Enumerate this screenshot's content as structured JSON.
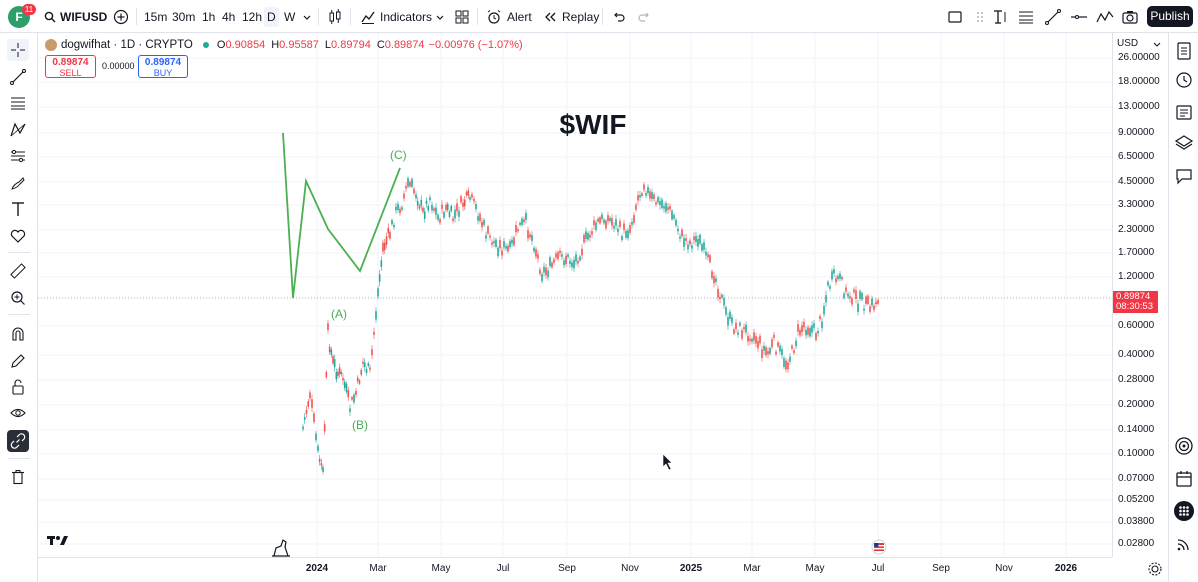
{
  "header": {
    "avatar_letter": "F",
    "notification_count": "11",
    "symbol": "WIFUSD",
    "timeframes": [
      "15m",
      "30m",
      "1h",
      "4h",
      "12h",
      "D",
      "W"
    ],
    "active_timeframe": "D",
    "indicators_label": "Indicators",
    "alert_label": "Alert",
    "replay_label": "Replay",
    "publish_label": "Publish"
  },
  "legend": {
    "name": "dogwifhat · 1D · CRYPTO",
    "open_label": "O",
    "open": "0.90854",
    "high_label": "H",
    "high": "0.95587",
    "low_label": "L",
    "low": "0.89794",
    "close_label": "C",
    "close": "0.89874",
    "change": "−0.00976 (−1.07%)"
  },
  "trade": {
    "sell_price": "0.89874",
    "sell_label": "SELL",
    "spread": "0.00000",
    "buy_price": "0.89874",
    "buy_label": "BUY"
  },
  "chart": {
    "title": "$WIF",
    "wave_labels": {
      "a": "(A)",
      "b": "(B)",
      "c": "(C)"
    },
    "wave_color": "#4caf50",
    "up_color": "#26a69a",
    "down_color": "#ef5350",
    "current_price": "0.89874",
    "countdown": "08:30:53",
    "currency": "USD"
  },
  "price_axis": [
    "26.00000",
    "18.00000",
    "13.00000",
    "9.00000",
    "6.50000",
    "4.50000",
    "3.30000",
    "2.30000",
    "1.70000",
    "1.20000",
    "0.60000",
    "0.40000",
    "0.28000",
    "0.20000",
    "0.14000",
    "0.10000",
    "0.07000",
    "0.05200",
    "0.03800",
    "0.02800"
  ],
  "time_axis": [
    {
      "label": "2024",
      "bold": true
    },
    {
      "label": "Mar",
      "bold": false
    },
    {
      "label": "May",
      "bold": false
    },
    {
      "label": "Jul",
      "bold": false
    },
    {
      "label": "Sep",
      "bold": false
    },
    {
      "label": "Nov",
      "bold": false
    },
    {
      "label": "2025",
      "bold": true
    },
    {
      "label": "Mar",
      "bold": false
    },
    {
      "label": "May",
      "bold": false
    },
    {
      "label": "Jul",
      "bold": false
    },
    {
      "label": "Sep",
      "bold": false
    },
    {
      "label": "Nov",
      "bold": false
    },
    {
      "label": "2026",
      "bold": true
    }
  ]
}
